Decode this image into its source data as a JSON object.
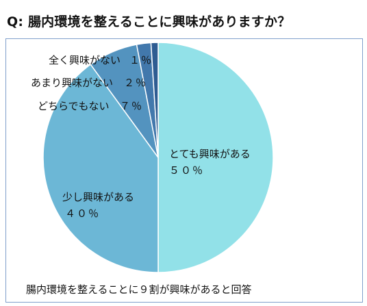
{
  "title": "Q: 腸内環境を整えることに興味がありますか？",
  "footnote": "腸内環境を整えることに９割が興味があると回答",
  "chart_data": {
    "type": "pie",
    "categories": [
      "とても興味がある",
      "少し興味がある",
      "どちらでもない",
      "あまり興味がない",
      "全く興味がない"
    ],
    "values": [
      50,
      40,
      7,
      2,
      1
    ],
    "value_labels": [
      "５０％",
      "４０％",
      "７％",
      "２％",
      "１％"
    ],
    "colors": [
      "#92e1e8",
      "#6cb7d6",
      "#5393bf",
      "#4278ac",
      "#2e5c92"
    ],
    "start_angle_deg": 0,
    "direction": "clockwise",
    "legend": "none"
  }
}
